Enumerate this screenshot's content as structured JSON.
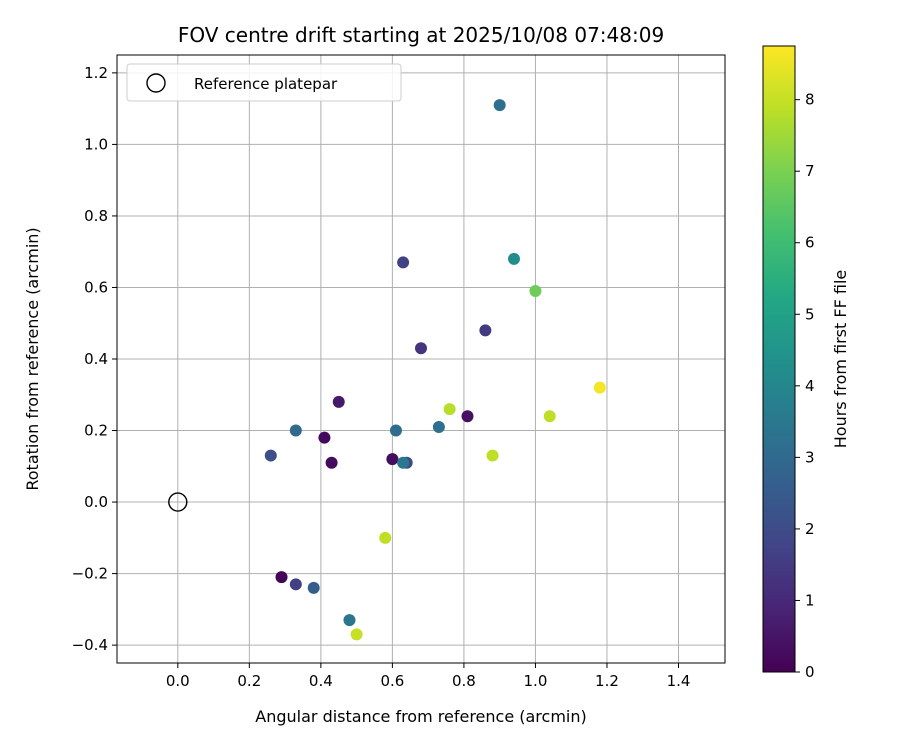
{
  "chart_data": {
    "type": "scatter",
    "title": "FOV centre drift starting at 2025/10/08 07:48:09",
    "xlabel": "Angular distance from reference (arcmin)",
    "ylabel": "Rotation from reference (arcmin)",
    "xlim": [
      -0.17,
      1.53
    ],
    "ylim": [
      -0.45,
      1.25
    ],
    "xticks": [
      0.0,
      0.2,
      0.4,
      0.6,
      0.8,
      1.0,
      1.2,
      1.4
    ],
    "xtick_labels": [
      "0.0",
      "0.2",
      "0.4",
      "0.6",
      "0.8",
      "1.0",
      "1.2",
      "1.4"
    ],
    "yticks": [
      -0.4,
      -0.2,
      0.0,
      0.2,
      0.4,
      0.6,
      0.8,
      1.0,
      1.2
    ],
    "ytick_labels": [
      "−0.4",
      "−0.2",
      "0.0",
      "0.2",
      "0.4",
      "0.6",
      "0.8",
      "1.0",
      "1.2"
    ],
    "grid": true,
    "legend": {
      "placement": "top-left",
      "entries": [
        {
          "label": "Reference platepar",
          "marker": "open-circle"
        }
      ]
    },
    "reference_point": {
      "x": 0.0,
      "y": 0.0
    },
    "colorbar": {
      "label": "Hours from first FF file",
      "colormap": "viridis",
      "range": [
        0,
        8.75
      ],
      "ticks": [
        0,
        1,
        2,
        3,
        4,
        5,
        6,
        7,
        8
      ],
      "tick_labels": [
        "0",
        "1",
        "2",
        "3",
        "4",
        "5",
        "6",
        "7",
        "8"
      ]
    },
    "points": [
      {
        "x": 0.29,
        "y": -0.21,
        "hours": 0.1
      },
      {
        "x": 0.41,
        "y": 0.18,
        "hours": 0.2
      },
      {
        "x": 0.43,
        "y": 0.11,
        "hours": 0.25
      },
      {
        "x": 0.6,
        "y": 0.12,
        "hours": 0.3
      },
      {
        "x": 0.81,
        "y": 0.24,
        "hours": 0.35
      },
      {
        "x": 0.45,
        "y": 0.28,
        "hours": 0.6
      },
      {
        "x": 0.68,
        "y": 0.43,
        "hours": 1.3
      },
      {
        "x": 0.33,
        "y": -0.23,
        "hours": 1.6
      },
      {
        "x": 0.63,
        "y": 0.67,
        "hours": 1.7
      },
      {
        "x": 0.86,
        "y": 0.48,
        "hours": 1.5
      },
      {
        "x": 0.64,
        "y": 0.11,
        "hours": 1.9
      },
      {
        "x": 0.26,
        "y": 0.13,
        "hours": 2.1
      },
      {
        "x": 0.38,
        "y": -0.24,
        "hours": 2.6
      },
      {
        "x": 0.33,
        "y": 0.2,
        "hours": 3.0
      },
      {
        "x": 0.61,
        "y": 0.2,
        "hours": 3.1
      },
      {
        "x": 0.73,
        "y": 0.21,
        "hours": 3.15
      },
      {
        "x": 0.9,
        "y": 1.11,
        "hours": 3.2
      },
      {
        "x": 0.48,
        "y": -0.33,
        "hours": 3.4
      },
      {
        "x": 0.63,
        "y": 0.11,
        "hours": 3.5
      },
      {
        "x": 0.94,
        "y": 0.68,
        "hours": 4.2
      },
      {
        "x": 1.0,
        "y": 0.59,
        "hours": 6.8
      },
      {
        "x": 0.76,
        "y": 0.26,
        "hours": 7.8
      },
      {
        "x": 0.58,
        "y": -0.1,
        "hours": 7.9
      },
      {
        "x": 0.88,
        "y": 0.13,
        "hours": 7.9
      },
      {
        "x": 1.04,
        "y": 0.24,
        "hours": 7.9
      },
      {
        "x": 0.5,
        "y": -0.37,
        "hours": 8.0
      },
      {
        "x": 1.18,
        "y": 0.32,
        "hours": 8.6
      }
    ]
  }
}
